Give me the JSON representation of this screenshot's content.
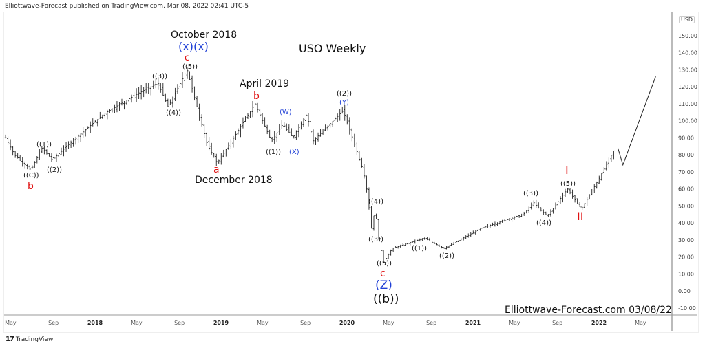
{
  "header": {
    "published": "Elliottwave-Forecast published on TradingView.com, Mar 08, 2022 02:41 UTC-5"
  },
  "footer": {
    "brand": "TradingView",
    "logo": "17"
  },
  "currency": "USD",
  "chart_data": {
    "type": "ohlc",
    "title": "USO Weekly",
    "watermark": "Elliottwave-Forecast.com 03/08/22",
    "ylim": [
      -10,
      155
    ],
    "y_ticks": [
      "150.00",
      "140.00",
      "130.00",
      "120.00",
      "110.00",
      "100.00",
      "90.00",
      "80.00",
      "70.00",
      "60.00",
      "50.00",
      "40.00",
      "30.00",
      "20.00",
      "10.00",
      "0.00",
      "-10.00"
    ],
    "x_ticks": [
      {
        "t": 2017.33,
        "label": "May"
      },
      {
        "t": 2017.67,
        "label": "Sep"
      },
      {
        "t": 2018.0,
        "label": "2018"
      },
      {
        "t": 2018.33,
        "label": "May"
      },
      {
        "t": 2018.67,
        "label": "Sep"
      },
      {
        "t": 2019.0,
        "label": "2019"
      },
      {
        "t": 2019.33,
        "label": "May"
      },
      {
        "t": 2019.67,
        "label": "Sep"
      },
      {
        "t": 2020.0,
        "label": "2020"
      },
      {
        "t": 2020.33,
        "label": "May"
      },
      {
        "t": 2020.67,
        "label": "Sep"
      },
      {
        "t": 2021.0,
        "label": "2021"
      },
      {
        "t": 2021.33,
        "label": "May"
      },
      {
        "t": 2021.67,
        "label": "Sep"
      },
      {
        "t": 2022.0,
        "label": "2022"
      },
      {
        "t": 2022.33,
        "label": "May"
      }
    ],
    "price_path": [
      [
        2017.29,
        90
      ],
      [
        2017.36,
        80
      ],
      [
        2017.49,
        71
      ],
      [
        2017.58,
        84
      ],
      [
        2017.66,
        77
      ],
      [
        2017.79,
        86
      ],
      [
        2018.07,
        104
      ],
      [
        2018.34,
        116
      ],
      [
        2018.5,
        122
      ],
      [
        2018.58,
        108
      ],
      [
        2018.73,
        130
      ],
      [
        2018.89,
        86
      ],
      [
        2018.97,
        75
      ],
      [
        2019.1,
        90
      ],
      [
        2019.27,
        110
      ],
      [
        2019.4,
        88
      ],
      [
        2019.49,
        98
      ],
      [
        2019.57,
        90
      ],
      [
        2019.68,
        104
      ],
      [
        2019.73,
        88
      ],
      [
        2019.97,
        106
      ],
      [
        2020.06,
        86
      ],
      [
        2020.13,
        70
      ],
      [
        2020.16,
        58
      ],
      [
        2020.2,
        33
      ],
      [
        2020.22,
        50
      ],
      [
        2020.25,
        31
      ],
      [
        2020.29,
        17
      ],
      [
        2020.36,
        25
      ],
      [
        2020.61,
        31
      ],
      [
        2020.77,
        25
      ],
      [
        2021.07,
        37
      ],
      [
        2021.4,
        45
      ],
      [
        2021.48,
        52
      ],
      [
        2021.53,
        48
      ],
      [
        2021.59,
        44
      ],
      [
        2021.75,
        60
      ],
      [
        2021.86,
        48
      ],
      [
        2022.0,
        66
      ],
      [
        2022.1,
        80
      ],
      [
        2022.13,
        84
      ]
    ],
    "projection": [
      [
        2022.15,
        84
      ],
      [
        2022.19,
        74
      ],
      [
        2022.45,
        126
      ]
    ],
    "annotations": [
      {
        "text": "October 2018",
        "color": "#111111"
      },
      {
        "text": "(x)(x)",
        "color": "#1f3fd6"
      },
      {
        "text": "c",
        "color": "#e01010"
      },
      {
        "text": "((5))",
        "color": "#111111"
      },
      {
        "text": "((3))",
        "color": "#111111"
      },
      {
        "text": "((4))",
        "color": "#111111"
      },
      {
        "text": "April 2019",
        "color": "#111111"
      },
      {
        "text": "b",
        "color": "#e01010"
      },
      {
        "text": "(W)",
        "color": "#1f3fd6"
      },
      {
        "text": "((2))",
        "color": "#111111"
      },
      {
        "text": "(Y)",
        "color": "#1f3fd6"
      },
      {
        "text": "USO Weekly",
        "color": "#111111"
      },
      {
        "text": "((1))",
        "color": "#111111"
      },
      {
        "text": "((2))",
        "color": "#111111"
      },
      {
        "text": "((C))",
        "color": "#111111"
      },
      {
        "text": "b",
        "color": "#e01010"
      },
      {
        "text": "a",
        "color": "#e01010"
      },
      {
        "text": "December 2018",
        "color": "#111111"
      },
      {
        "text": "((1))",
        "color": "#111111"
      },
      {
        "text": "(X)",
        "color": "#1f3fd6"
      },
      {
        "text": "((4))",
        "color": "#111111"
      },
      {
        "text": "((3))",
        "color": "#111111"
      },
      {
        "text": "((5))",
        "color": "#111111"
      },
      {
        "text": "c",
        "color": "#e01010"
      },
      {
        "text": "(Z)",
        "color": "#1f3fd6"
      },
      {
        "text": "((b))",
        "color": "#111111"
      },
      {
        "text": "((1))",
        "color": "#111111"
      },
      {
        "text": "((2))",
        "color": "#111111"
      },
      {
        "text": "((3))",
        "color": "#111111"
      },
      {
        "text": "((4))",
        "color": "#111111"
      },
      {
        "text": "((5))",
        "color": "#111111"
      },
      {
        "text": "I",
        "color": "#e01010"
      },
      {
        "text": "II",
        "color": "#e01010"
      },
      {
        "text": "Elliottwave-Forecast.com 03/08/22",
        "color": "#111111"
      }
    ]
  }
}
